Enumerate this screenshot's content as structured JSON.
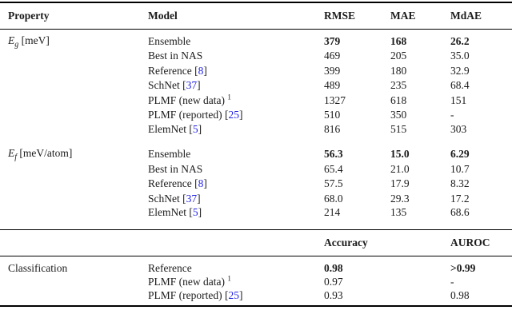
{
  "table": {
    "colors": {
      "text": "#1b1b1b",
      "citation_blue": "#2222e8",
      "rule": "#000000",
      "background": "#ffffff"
    },
    "header": {
      "property": "Property",
      "model": "Model",
      "metrics": [
        "RMSE",
        "MAE",
        "MdAE"
      ]
    },
    "sections": [
      {
        "id": "eg",
        "property": {
          "symbol": "E",
          "sub": "g",
          "unit": " [meV]"
        },
        "rows": [
          {
            "model": {
              "text": "Ensemble"
            },
            "values": [
              "379",
              "168",
              "26.2"
            ],
            "bold": true
          },
          {
            "model": {
              "text": "Best in NAS"
            },
            "values": [
              "469",
              "205",
              "35.0"
            ],
            "bold": false
          },
          {
            "model": {
              "text": "Reference",
              "cite": "8"
            },
            "values": [
              "399",
              "180",
              "32.9"
            ],
            "bold": false
          },
          {
            "model": {
              "text": "SchNet",
              "cite": "37"
            },
            "values": [
              "489",
              "235",
              "68.4"
            ],
            "bold": false
          },
          {
            "model": {
              "text": "PLMF (new data)",
              "sup": "1"
            },
            "values": [
              "1327",
              "618",
              "151"
            ],
            "bold": false
          },
          {
            "model": {
              "text": "PLMF (reported)",
              "cite": "25"
            },
            "values": [
              "510",
              "350",
              "-"
            ],
            "bold": false
          },
          {
            "model": {
              "text": "ElemNet",
              "cite": "5"
            },
            "values": [
              "816",
              "515",
              "303"
            ],
            "bold": false
          }
        ]
      },
      {
        "id": "ef",
        "property": {
          "symbol": "E",
          "sub": "f",
          "unit": " [meV/atom]"
        },
        "rows": [
          {
            "model": {
              "text": "Ensemble"
            },
            "values": [
              "56.3",
              "15.0",
              "6.29"
            ],
            "bold": true
          },
          {
            "model": {
              "text": "Best in NAS"
            },
            "values": [
              "65.4",
              "21.0",
              "10.7"
            ],
            "bold": false
          },
          {
            "model": {
              "text": "Reference",
              "cite": "8"
            },
            "values": [
              "57.5",
              "17.9",
              "8.32"
            ],
            "bold": false
          },
          {
            "model": {
              "text": "SchNet",
              "cite": "37"
            },
            "values": [
              "68.0",
              "29.3",
              "17.2"
            ],
            "bold": false
          },
          {
            "model": {
              "text": "ElemNet",
              "cite": "5"
            },
            "values": [
              "214",
              "135",
              "68.6"
            ],
            "bold": false
          }
        ]
      }
    ],
    "subheader": {
      "property": "",
      "model": "",
      "metrics": [
        "Accuracy",
        "",
        "AUROC"
      ]
    },
    "classification_section": {
      "id": "cls",
      "property": {
        "text": "Classification"
      },
      "rows": [
        {
          "model": {
            "text": "Reference"
          },
          "values": [
            "0.98",
            "",
            ">0.99"
          ],
          "bold": true
        },
        {
          "model": {
            "text": "PLMF (new data)",
            "sup": "1"
          },
          "values": [
            "0.97",
            "",
            "-"
          ],
          "bold": false
        },
        {
          "model": {
            "text": "PLMF (reported)",
            "cite": "25"
          },
          "values": [
            "0.93",
            "",
            "0.98"
          ],
          "bold": false
        }
      ]
    }
  }
}
